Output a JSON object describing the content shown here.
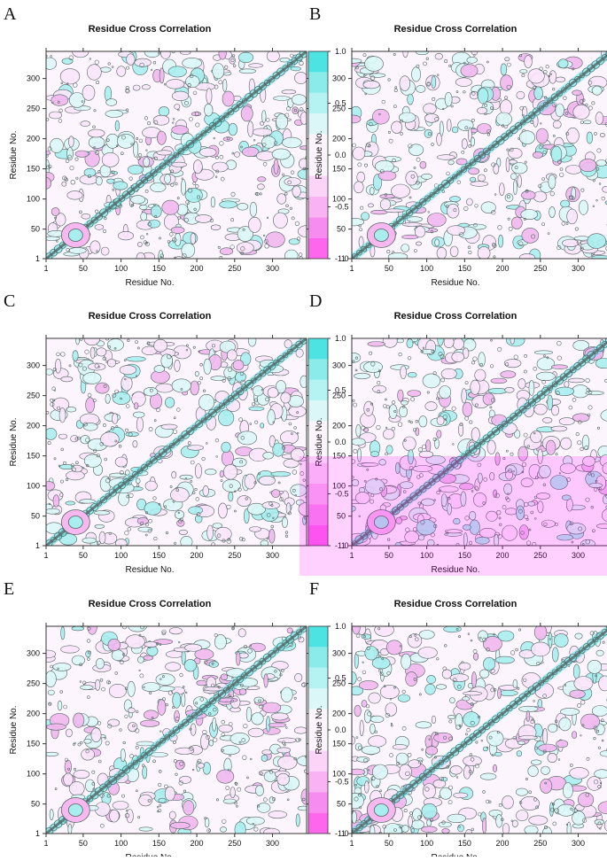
{
  "figure": {
    "panel_labels": [
      "A",
      "B",
      "C",
      "D",
      "E",
      "F"
    ]
  },
  "chart_data": [
    {
      "panel": "A",
      "type": "heatmap",
      "seed": 11,
      "title": "Residue Cross Correlation",
      "xlabel": "Residue No.",
      "ylabel": "Residue No.",
      "x_ticks": [
        "1",
        "50",
        "100",
        "150",
        "200",
        "250",
        "300"
      ],
      "y_ticks": [
        "1",
        "50",
        "100",
        "150",
        "200",
        "250",
        "300"
      ],
      "x_range": [
        1,
        345
      ],
      "y_range": [
        1,
        345
      ],
      "colorbar_ticks": [
        "-1.0",
        "-0.5",
        "0.0",
        "0.5",
        "1.0"
      ],
      "colorbar_range": [
        -1.0,
        1.0
      ],
      "colorbar_levels": [
        -1.0,
        -0.8,
        -0.6,
        -0.4,
        -0.2,
        0.2,
        0.4,
        0.6,
        0.8,
        1.0
      ]
    },
    {
      "panel": "B",
      "type": "heatmap",
      "seed": 23,
      "title": "Residue Cross Correlation",
      "xlabel": "Residue No.",
      "ylabel": "Residue No.",
      "x_ticks": [
        "1",
        "50",
        "100",
        "150",
        "200",
        "250",
        "300"
      ],
      "y_ticks": [
        "1",
        "50",
        "100",
        "150",
        "200",
        "250",
        "300"
      ],
      "x_range": [
        1,
        345
      ],
      "y_range": [
        1,
        345
      ],
      "colorbar_ticks": [
        "-1.0",
        "-0.5",
        "0.0",
        "0.5",
        "1.0"
      ],
      "colorbar_range": [
        -1.0,
        1.0
      ],
      "colorbar_levels": [
        -1.0,
        -0.8,
        -0.6,
        -0.4,
        -0.2,
        0.2,
        0.4,
        0.6,
        0.8,
        1.0
      ]
    },
    {
      "panel": "C",
      "type": "heatmap",
      "seed": 37,
      "title": "Residue Cross Correlation",
      "xlabel": "Residue No.",
      "ylabel": "Residue No.",
      "x_ticks": [
        "1",
        "50",
        "100",
        "150",
        "200",
        "250",
        "300"
      ],
      "y_ticks": [
        "1",
        "50",
        "100",
        "150",
        "200",
        "250",
        "300"
      ],
      "x_range": [
        1,
        345
      ],
      "y_range": [
        1,
        345
      ],
      "colorbar_ticks": [
        "-1.0",
        "-0.5",
        "0.0",
        "0.5",
        "1.0"
      ],
      "colorbar_range": [
        -1.0,
        1.0
      ],
      "colorbar_levels": [
        -1.0,
        -0.8,
        -0.6,
        -0.4,
        -0.2,
        0.2,
        0.4,
        0.6,
        0.8,
        1.0
      ]
    },
    {
      "panel": "D",
      "type": "heatmap",
      "seed": 41,
      "title": "Residue Cross Correlation",
      "xlabel": "Residue No.",
      "ylabel": "Residue No.",
      "x_ticks": [
        "1",
        "50",
        "100",
        "150",
        "200",
        "250",
        "300"
      ],
      "y_ticks": [
        "1",
        "50",
        "100",
        "150",
        "200",
        "250",
        "300"
      ],
      "x_range": [
        1,
        345
      ],
      "y_range": [
        1,
        345
      ],
      "colorbar_ticks": [
        "-1.0",
        "-0.5",
        "0.0",
        "0.5",
        "1.0"
      ],
      "colorbar_range": [
        -1.0,
        1.0
      ],
      "colorbar_levels": [
        -1.0,
        -0.8,
        -0.6,
        -0.4,
        -0.2,
        0.2,
        0.4,
        0.6,
        0.8,
        1.0
      ]
    },
    {
      "panel": "E",
      "type": "heatmap",
      "seed": 53,
      "title": "Residue Cross Correlation",
      "xlabel": "Residue No.",
      "ylabel": "Residue No.",
      "x_ticks": [
        "1",
        "50",
        "100",
        "150",
        "200",
        "250",
        "300"
      ],
      "y_ticks": [
        "1",
        "50",
        "100",
        "150",
        "200",
        "250",
        "300"
      ],
      "x_range": [
        1,
        345
      ],
      "y_range": [
        1,
        345
      ],
      "colorbar_ticks": [
        "-1.0",
        "-0.5",
        "0.0",
        "0.5",
        "1.0"
      ],
      "colorbar_range": [
        -1.0,
        1.0
      ],
      "colorbar_levels": [
        -1.0,
        -0.8,
        -0.6,
        -0.4,
        -0.2,
        0.2,
        0.4,
        0.6,
        0.8,
        1.0
      ]
    },
    {
      "panel": "F",
      "type": "heatmap",
      "seed": 67,
      "title": "Residue Cross Correlation",
      "xlabel": "Residue No.",
      "ylabel": "Residue No.",
      "x_ticks": [
        "1",
        "50",
        "100",
        "150",
        "200",
        "250",
        "300"
      ],
      "y_ticks": [
        "1",
        "50",
        "100",
        "150",
        "200",
        "250",
        "300"
      ],
      "x_range": [
        1,
        345
      ],
      "y_range": [
        1,
        345
      ],
      "colorbar_ticks": [
        "-1.0",
        "-0.5",
        "0.0",
        "0.5",
        "1.0"
      ],
      "colorbar_range": [
        -1.0,
        1.0
      ],
      "colorbar_levels": [
        -1.0,
        -0.8,
        -0.6,
        -0.4,
        -0.2,
        0.2,
        0.4,
        0.6,
        0.8,
        1.0
      ]
    }
  ],
  "colors": {
    "positive_dark": "#4de3e3",
    "positive_light": "#dcf7f7",
    "negative_dark": "#ff66ee",
    "negative_light": "#fbe6fb",
    "neutral": "#fdf5fd",
    "diagonal": "#5f7f7f",
    "contour": "#556666"
  }
}
